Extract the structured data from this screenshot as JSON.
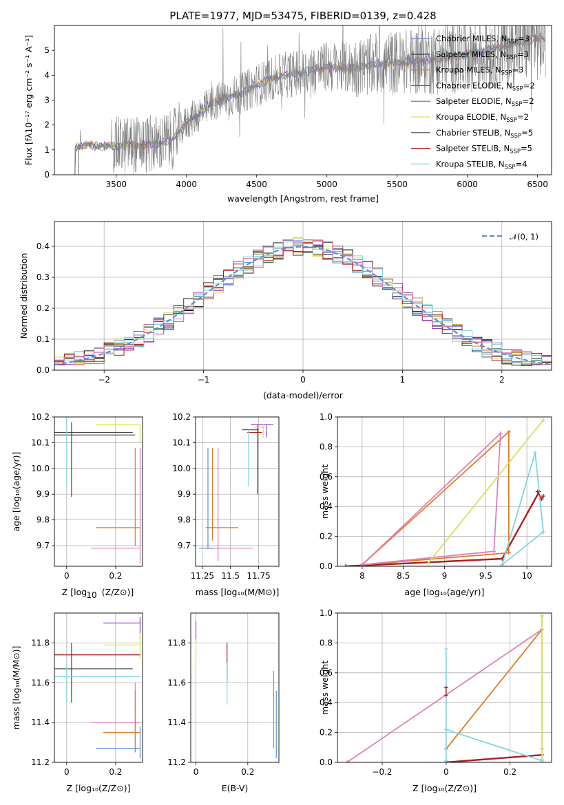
{
  "title": "PLATE=1977, MJD=53475, FIBERID=0139, z=0.428",
  "colors": {
    "chabrier_miles": "#5b8fd8",
    "salpeter_miles": "#1a1a1a",
    "kroupa_miles": "#e07b22",
    "chabrier_elodie": "#3f7a3f",
    "salpeter_elodie": "#9b3fc4",
    "kroupa_elodie": "#d7e05a",
    "chabrier_stelib": "#444444",
    "salpeter_stelib": "#b01c1c",
    "kroupa_stelib": "#7fd6e0",
    "pink": "#e07fb8",
    "spectrum": "#808080"
  },
  "chart_data": [
    {
      "type": "line",
      "panel": "spectrum",
      "xlabel": "wavelength [Angstrom, rest frame]",
      "ylabel": "Flux [f$_\\lambda$10$^{-17}$ erg cm$^{-2}$ s$^{-1}$ A$^{-1}$]",
      "ylabel_display": "Flux [fλ10⁻¹⁷ erg cm⁻² s⁻¹ A⁻¹]",
      "xlim": [
        3060,
        6600
      ],
      "ylim": [
        0,
        6
      ],
      "xticks": [
        3500,
        4000,
        4500,
        5000,
        5500,
        6000,
        6500
      ],
      "yticks": [
        0,
        1,
        2,
        3,
        4,
        5
      ],
      "legend_placement": "upper right",
      "legend": [
        {
          "label": "Chabrier MILES, N$_{SSP}$=3",
          "display": "Chabrier MILES, N",
          "sub": "SSP",
          "tail": "=3",
          "color": "#5b8fd8"
        },
        {
          "label": "Salpeter MILES, N$_{SSP}$=3",
          "display": "Salpeter MILES, N",
          "sub": "SSP",
          "tail": "=3",
          "color": "#1a1a1a"
        },
        {
          "label": "Kroupa MILES, N$_{SSP}$=3",
          "display": "Kroupa MILES, N",
          "sub": "SSP",
          "tail": "=3",
          "color": "#e07b22"
        },
        {
          "label": "Chabrier ELODIE, N$_{SSP}$=2",
          "display": "Chabrier ELODIE, N",
          "sub": "SSP",
          "tail": "=2",
          "color": "#3f7a3f"
        },
        {
          "label": "Salpeter ELODIE, N$_{SSP}$=2",
          "display": "Salpeter ELODIE, N",
          "sub": "SSP",
          "tail": "=2",
          "color": "#9b3fc4"
        },
        {
          "label": "Kroupa ELODIE, N$_{SSP}$=2",
          "display": "Kroupa ELODIE, N",
          "sub": "SSP",
          "tail": "=2",
          "color": "#d7e05a"
        },
        {
          "label": "Chabrier STELIB, N$_{SSP}$=5",
          "display": "Chabrier STELIB, N",
          "sub": "SSP",
          "tail": "=5",
          "color": "#444444"
        },
        {
          "label": "Salpeter STELIB, N$_{SSP}$=5",
          "display": "Salpeter STELIB, N",
          "sub": "SSP",
          "tail": "=5",
          "color": "#b01c1c"
        },
        {
          "label": "Kroupa STELIB, N$_{SSP}$=4",
          "display": "Kroupa STELIB, N",
          "sub": "SSP",
          "tail": "=4",
          "color": "#7fd6e0"
        }
      ],
      "continuum": {
        "x": [
          3200,
          3300,
          3400,
          3500,
          3600,
          3700,
          3800,
          3900,
          4000,
          4100,
          4200,
          4300,
          4400,
          4500,
          4600,
          4700,
          4800,
          4900,
          5000,
          5100,
          5200,
          5300,
          5400,
          5500,
          5600,
          5700,
          5800,
          5900,
          6000,
          6100,
          6200,
          6300,
          6400,
          6500
        ],
        "y": [
          1.1,
          1.2,
          1.15,
          1.15,
          1.2,
          1.2,
          1.25,
          1.4,
          2.1,
          2.5,
          2.9,
          3.1,
          3.3,
          3.6,
          3.85,
          4.0,
          4.1,
          4.2,
          4.35,
          4.3,
          4.3,
          4.4,
          4.5,
          4.5,
          4.55,
          4.6,
          4.65,
          4.75,
          4.85,
          4.95,
          5.1,
          5.2,
          5.35,
          5.5
        ]
      }
    },
    {
      "type": "histogram",
      "panel": "residuals",
      "xlabel": "(data-model)/error",
      "ylabel": "Normed distribution",
      "xlim": [
        -2.5,
        2.5
      ],
      "ylim": [
        0,
        0.48
      ],
      "xticks": [
        -2,
        -1,
        0,
        1,
        2
      ],
      "yticks": [
        0.0,
        0.1,
        0.2,
        0.3,
        0.4
      ],
      "grid": true,
      "legend": [
        {
          "label": "$\\mathcal{N}(0,1)$",
          "display": "𝒩(0, 1)",
          "color": "#5b8fd8",
          "style": "dashed"
        }
      ]
    },
    {
      "type": "errorbar",
      "panel": "age_vs_Z",
      "xlabel": "Z [log$_{10}$(Z/Z$_\\odot$)]",
      "ylabel": "age  [log$_{10}$(age/yr)]",
      "xlim": [
        -0.05,
        0.31
      ],
      "ylim": [
        9.62,
        10.2
      ],
      "xticks": [
        0.0,
        0.2
      ],
      "yticks": [
        9.7,
        9.8,
        9.9,
        10.0,
        10.1,
        10.2
      ]
    },
    {
      "type": "errorbar",
      "panel": "age_vs_mass",
      "xlabel": "mass [log$_{10}$(M/M$_\\odot$)]",
      "xlim": [
        11.19,
        11.93
      ],
      "ylim": [
        9.62,
        10.2
      ],
      "xticks": [
        11.25,
        11.5,
        11.75
      ],
      "yticks": [
        9.7,
        9.8,
        9.9,
        10.0,
        10.1,
        10.2
      ]
    },
    {
      "type": "line",
      "panel": "mass_weight_vs_age",
      "xlabel": "age  [log$_{10}$(age/yr)]",
      "ylabel": "mass weight",
      "xlim": [
        7.7,
        10.3
      ],
      "ylim": [
        0,
        1
      ],
      "xticks": [
        8.0,
        8.5,
        9.0,
        9.5,
        10.0
      ],
      "yticks": [
        0.0,
        0.2,
        0.4,
        0.6,
        0.8,
        1.0
      ],
      "grid": true
    },
    {
      "type": "errorbar",
      "panel": "mass_vs_Z",
      "xlabel": "Z [log$_{10}$(Z/Z$_\\odot$)]",
      "ylabel": "mass [log$_{10}$(M/M$_\\odot$)]",
      "xlim": [
        -0.05,
        0.31
      ],
      "ylim": [
        11.2,
        11.95
      ],
      "xticks": [
        0.0,
        0.2
      ],
      "yticks": [
        11.2,
        11.4,
        11.6,
        11.8
      ]
    },
    {
      "type": "errorbar",
      "panel": "mass_vs_EBV",
      "xlabel": "E(B-V)",
      "xlim": [
        -0.02,
        0.32
      ],
      "ylim": [
        11.2,
        11.95
      ],
      "xticks": [
        0.0,
        0.2
      ],
      "yticks": [
        11.2,
        11.4,
        11.6,
        11.8
      ]
    },
    {
      "type": "line",
      "panel": "mass_weight_vs_Z",
      "xlabel": "Z [log$_{10}$(Z/Z$_\\odot$)]",
      "ylabel": "mass weight",
      "xlim": [
        -0.34,
        0.33
      ],
      "ylim": [
        0,
        1
      ],
      "xticks": [
        -0.2,
        0.0,
        0.2
      ],
      "yticks": [
        0.0,
        0.2,
        0.4,
        0.6,
        0.8,
        1.0
      ],
      "grid": true
    }
  ]
}
